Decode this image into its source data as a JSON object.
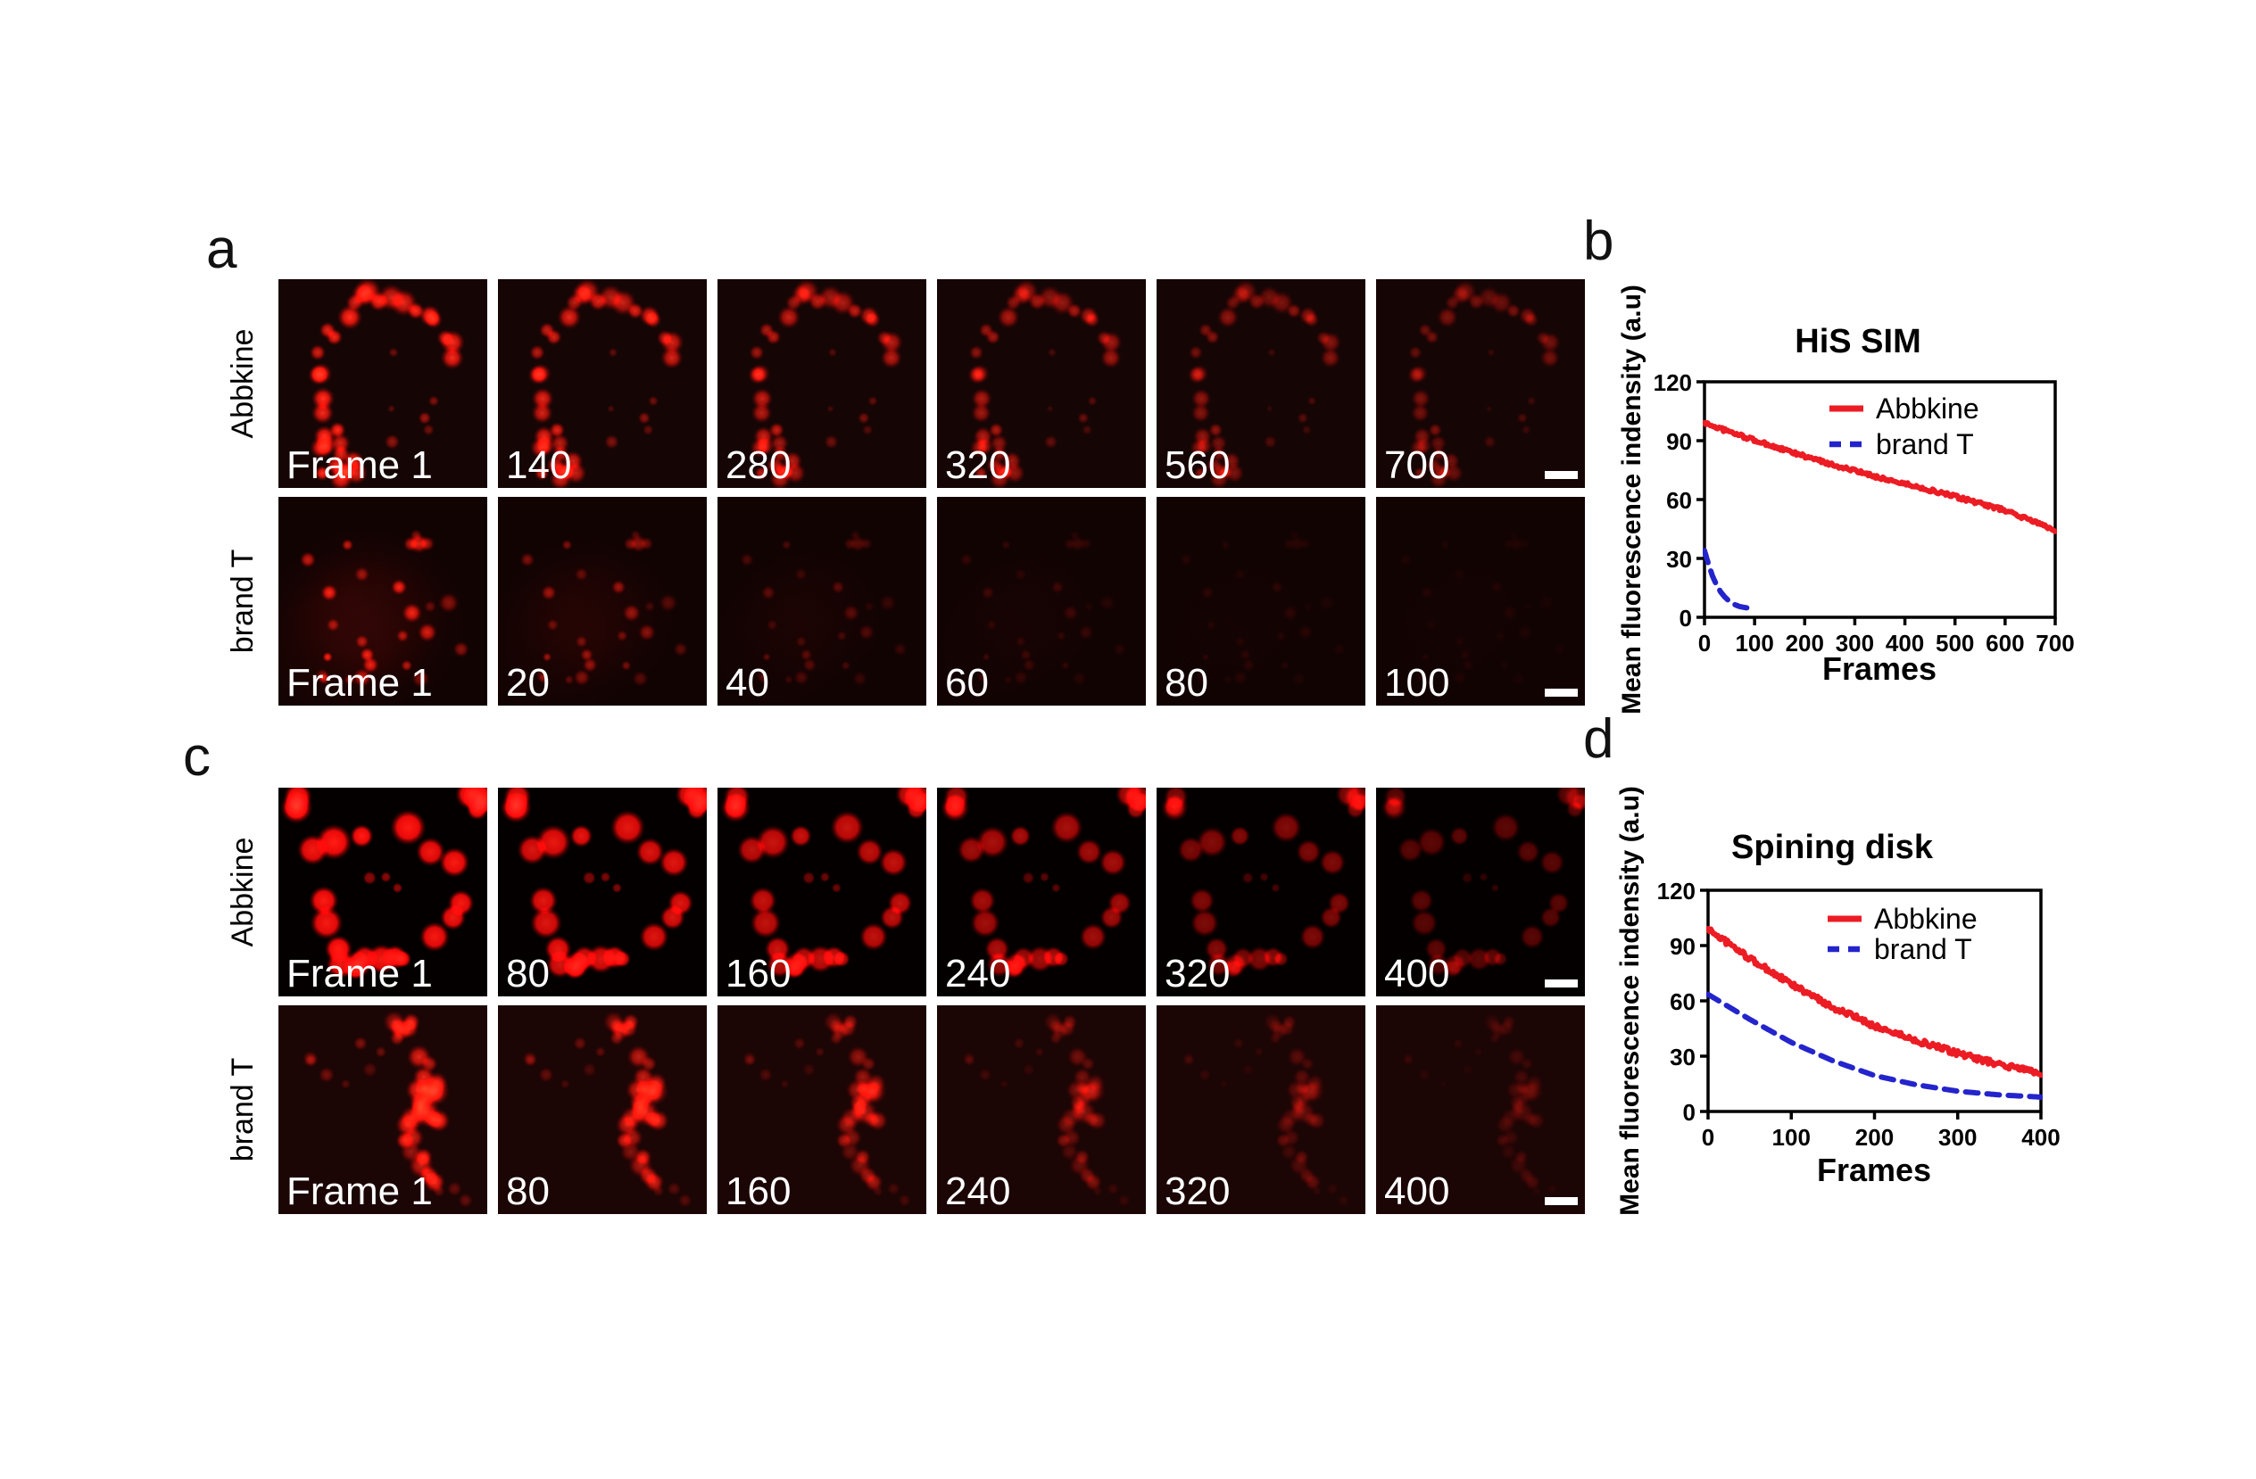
{
  "panel_letters": {
    "a": "a",
    "b": "b",
    "c": "c",
    "d": "d"
  },
  "micrograph_panels": [
    {
      "id": "a",
      "rows": [
        {
          "row_label": "Abbkine",
          "pattern": "sim-abbkine",
          "scale_bar": true,
          "frames": [
            {
              "label": "Frame 1",
              "intensity": 1
            },
            {
              "label": "140",
              "intensity": 0.85
            },
            {
              "label": "280",
              "intensity": 0.72
            },
            {
              "label": "320",
              "intensity": 0.62
            },
            {
              "label": "560",
              "intensity": 0.5
            },
            {
              "label": "700",
              "intensity": 0.42
            }
          ]
        },
        {
          "row_label": "brand T",
          "pattern": "sim-brandt",
          "scale_bar": true,
          "frames": [
            {
              "label": "Frame 1",
              "intensity": 0.9
            },
            {
              "label": "20",
              "intensity": 0.55
            },
            {
              "label": "40",
              "intensity": 0.3
            },
            {
              "label": "60",
              "intensity": 0.18
            },
            {
              "label": "80",
              "intensity": 0.11
            },
            {
              "label": "100",
              "intensity": 0.07
            }
          ]
        }
      ]
    },
    {
      "id": "c",
      "rows": [
        {
          "row_label": "Abbkine",
          "pattern": "disk-abbkine",
          "scale_bar": true,
          "frames": [
            {
              "label": "Frame 1",
              "intensity": 1
            },
            {
              "label": "80",
              "intensity": 0.9
            },
            {
              "label": "160",
              "intensity": 0.78
            },
            {
              "label": "240",
              "intensity": 0.65
            },
            {
              "label": "320",
              "intensity": 0.5
            },
            {
              "label": "400",
              "intensity": 0.35
            }
          ]
        },
        {
          "row_label": "brand T",
          "pattern": "disk-brandt",
          "scale_bar": true,
          "frames": [
            {
              "label": "Frame 1",
              "intensity": 0.95
            },
            {
              "label": "80",
              "intensity": 0.78
            },
            {
              "label": "160",
              "intensity": 0.58
            },
            {
              "label": "240",
              "intensity": 0.42
            },
            {
              "label": "320",
              "intensity": 0.3
            },
            {
              "label": "400",
              "intensity": 0.2
            }
          ]
        }
      ]
    }
  ],
  "chart_data": [
    {
      "id": "b",
      "type": "line",
      "title": "HiS SIM",
      "xlabel": "Frames",
      "ylabel": "Mean fluorescence indensity (a.u)",
      "xlim": [
        0,
        700
      ],
      "ylim": [
        0,
        120
      ],
      "xticks": [
        0,
        100,
        200,
        300,
        400,
        500,
        600,
        700
      ],
      "yticks": [
        0,
        30,
        60,
        90,
        120
      ],
      "grid": false,
      "legend_position": "top-right-inside",
      "series": [
        {
          "name": "Abbkine",
          "color": "#ec1c24",
          "style": "solid",
          "x": [
            0,
            50,
            100,
            150,
            200,
            250,
            300,
            350,
            400,
            450,
            500,
            550,
            600,
            650,
            700
          ],
          "y": [
            99,
            94.5,
            90.2,
            86,
            82,
            78.2,
            74.6,
            71.2,
            68,
            64.8,
            61.5,
            58,
            54.5,
            49.5,
            44.5
          ]
        },
        {
          "name": "brand T",
          "color": "#2424cc",
          "style": "dashed",
          "x": [
            0,
            8,
            16,
            24,
            32,
            40,
            50,
            60,
            70,
            80,
            90
          ],
          "y": [
            34,
            27,
            21,
            16.5,
            13,
            10.5,
            8,
            6.5,
            5.5,
            5,
            4.6
          ]
        }
      ]
    },
    {
      "id": "d",
      "type": "line",
      "title": "Spining disk",
      "xlabel": "Frames",
      "ylabel": "Mean fluorescence indensity (a.u)",
      "xlim": [
        0,
        400
      ],
      "ylim": [
        0,
        120
      ],
      "xticks": [
        0,
        100,
        200,
        300,
        400
      ],
      "yticks": [
        0,
        30,
        60,
        90,
        120
      ],
      "grid": false,
      "legend_position": "top-right-inside",
      "series": [
        {
          "name": "Abbkine",
          "color": "#ec1c24",
          "style": "solid",
          "x": [
            0,
            50,
            100,
            150,
            200,
            250,
            300,
            350,
            400
          ],
          "y": [
            99,
            83,
            69,
            56.5,
            46.5,
            38.5,
            31.5,
            25.5,
            21
          ]
        },
        {
          "name": "brand T",
          "color": "#2424cc",
          "style": "dashed",
          "x": [
            0,
            50,
            100,
            150,
            200,
            250,
            300,
            350,
            400
          ],
          "y": [
            63.5,
            50,
            37.5,
            27.5,
            19.5,
            14.5,
            11,
            9,
            7.8
          ]
        }
      ]
    }
  ]
}
